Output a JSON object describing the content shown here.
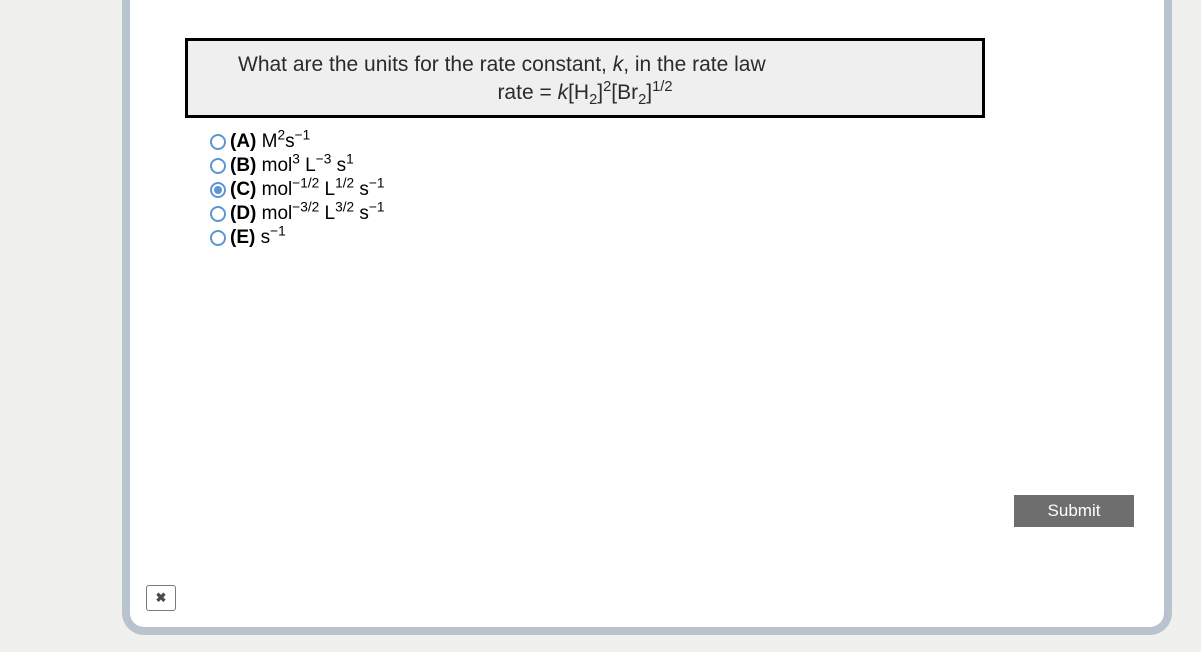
{
  "colors": {
    "page_background": "#f0f0ee",
    "panel_background": "#ffffff",
    "panel_border": "#b8c3cd",
    "question_border": "#000000",
    "question_background": "#efefef",
    "text": "#2b2b2b",
    "radio_color": "#5a96d6",
    "submit_background": "#6e6e6e",
    "submit_text": "#ffffff"
  },
  "question": {
    "line1_prefix": "What are the units for the rate constant, ",
    "line1_k": "k",
    "line1_suffix": ", in the rate law",
    "line2_rate": "rate ",
    "line2_equals": " = ",
    "line2_k": "k",
    "line2_H2": "[H",
    "line2_H2_sub": "2",
    "line2_H2_close": "]",
    "line2_H2_exp": "2",
    "line2_Br2": "[Br",
    "line2_Br2_sub": "2",
    "line2_Br2_close": "]",
    "line2_Br2_exp": "1/2"
  },
  "options": {
    "A": {
      "letter": "(A) ",
      "pre": "M",
      "exp1": "2",
      "mid1": "s",
      "exp2": "−1",
      "selected": false
    },
    "B": {
      "letter": "(B) ",
      "pre": "mol",
      "exp1": "3",
      "mid1": " L",
      "exp2": "−3",
      "mid2": " s",
      "exp3": "1",
      "selected": false
    },
    "C": {
      "letter": "(C) ",
      "pre": "mol",
      "exp1": "−1/2",
      "mid1": " L",
      "exp2": "1/2",
      "mid2": " s",
      "exp3": "−1",
      "selected": true
    },
    "D": {
      "letter": "(D) ",
      "pre": "mol",
      "exp1": "−3/2",
      "mid1": " L",
      "exp2": "3/2",
      "mid2": " s",
      "exp3": "−1",
      "selected": false
    },
    "E": {
      "letter": "(E) ",
      "pre": "s",
      "exp1": "−1",
      "selected": false
    }
  },
  "buttons": {
    "submit_label": "Submit",
    "close_label": "✖"
  }
}
